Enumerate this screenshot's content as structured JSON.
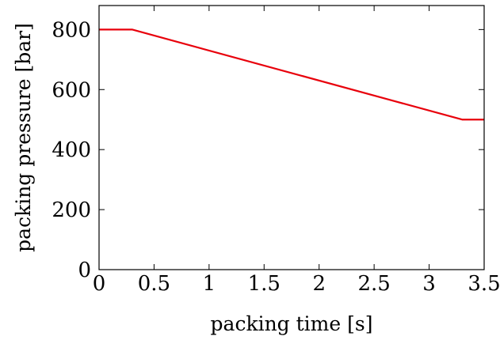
{
  "chart_data": {
    "type": "line",
    "title": "",
    "xlabel": "packing time [s]",
    "ylabel": "packing pressure [bar]",
    "xlim": [
      0,
      3.5
    ],
    "ylim": [
      0,
      880
    ],
    "x_ticks": [
      0,
      0.5,
      1,
      1.5,
      2,
      2.5,
      3,
      3.5
    ],
    "x_tick_labels": [
      "0",
      "0.5",
      "1",
      "1.5",
      "2",
      "2.5",
      "3",
      "3.5"
    ],
    "y_ticks": [
      0,
      200,
      400,
      600,
      800
    ],
    "y_tick_labels": [
      "0",
      "200",
      "400",
      "600",
      "800"
    ],
    "grid": false,
    "series": [
      {
        "color": "#e8000b",
        "x": [
          0,
          0.3,
          3.3,
          3.5
        ],
        "y": [
          800,
          800,
          500,
          500
        ]
      }
    ]
  }
}
